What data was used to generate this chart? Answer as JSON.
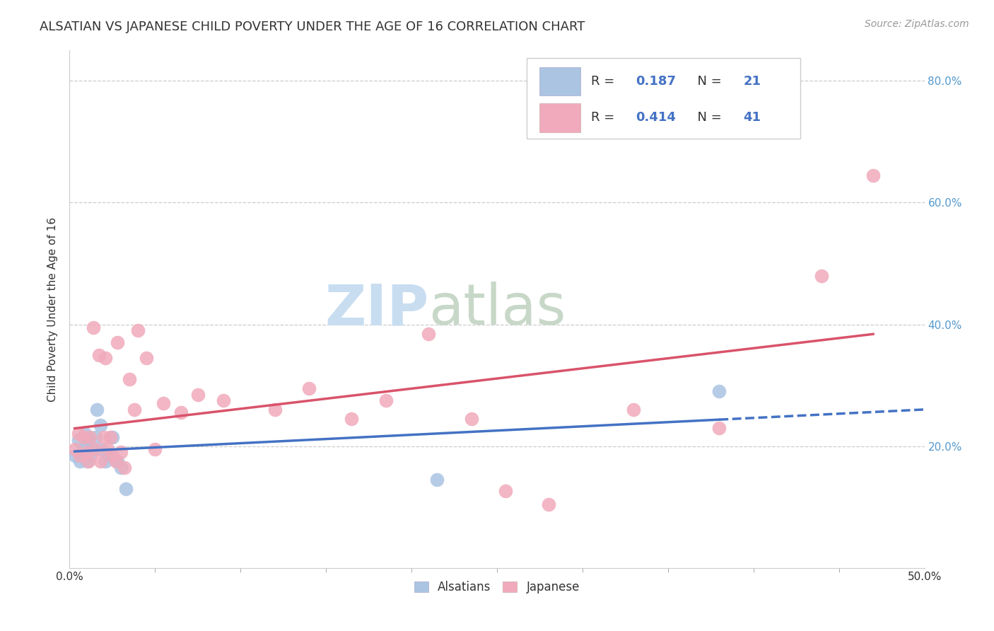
{
  "title": "ALSATIAN VS JAPANESE CHILD POVERTY UNDER THE AGE OF 16 CORRELATION CHART",
  "source": "Source: ZipAtlas.com",
  "ylabel": "Child Poverty Under the Age of 16",
  "xlim": [
    0.0,
    0.5
  ],
  "ylim": [
    0.0,
    0.85
  ],
  "xticks": [
    0.0,
    0.5
  ],
  "xticklabels": [
    "0.0%",
    "50.0%"
  ],
  "yticks": [
    0.2,
    0.4,
    0.6,
    0.8
  ],
  "yticklabels": [
    "20.0%",
    "40.0%",
    "60.0%",
    "80.0%"
  ],
  "grid_color": "#cccccc",
  "background_color": "#ffffff",
  "alsatian_color": "#aac4e2",
  "japanese_color": "#f0aabb",
  "alsatian_line_color": "#4472c4",
  "japanese_line_color": "#d9536a",
  "legend_R_alsatian": "0.187",
  "legend_N_alsatian": "21",
  "legend_R_japanese": "0.414",
  "legend_N_japanese": "41",
  "alsatian_x": [
    0.003,
    0.005,
    0.006,
    0.008,
    0.009,
    0.01,
    0.011,
    0.012,
    0.013,
    0.015,
    0.016,
    0.018,
    0.019,
    0.021,
    0.023,
    0.025,
    0.028,
    0.03,
    0.033,
    0.215,
    0.38
  ],
  "alsatian_y": [
    0.185,
    0.21,
    0.175,
    0.195,
    0.22,
    0.175,
    0.21,
    0.185,
    0.195,
    0.215,
    0.26,
    0.235,
    0.195,
    0.175,
    0.185,
    0.215,
    0.175,
    0.165,
    0.13,
    0.145,
    0.29
  ],
  "japanese_x": [
    0.003,
    0.005,
    0.006,
    0.008,
    0.01,
    0.011,
    0.012,
    0.014,
    0.015,
    0.017,
    0.018,
    0.02,
    0.021,
    0.022,
    0.024,
    0.025,
    0.027,
    0.028,
    0.03,
    0.032,
    0.035,
    0.038,
    0.04,
    0.045,
    0.05,
    0.055,
    0.065,
    0.075,
    0.09,
    0.12,
    0.14,
    0.165,
    0.185,
    0.21,
    0.235,
    0.255,
    0.28,
    0.33,
    0.38,
    0.44,
    0.47
  ],
  "japanese_y": [
    0.195,
    0.22,
    0.185,
    0.215,
    0.19,
    0.175,
    0.215,
    0.395,
    0.195,
    0.35,
    0.175,
    0.215,
    0.345,
    0.195,
    0.215,
    0.185,
    0.175,
    0.37,
    0.19,
    0.165,
    0.31,
    0.26,
    0.39,
    0.345,
    0.195,
    0.27,
    0.255,
    0.285,
    0.275,
    0.26,
    0.295,
    0.245,
    0.275,
    0.385,
    0.245,
    0.127,
    0.104,
    0.26,
    0.23,
    0.48,
    0.645
  ],
  "watermark_zip": "ZIP",
  "watermark_atlas": "atlas",
  "watermark_color_zip": "#c8ddf0",
  "watermark_color_atlas": "#c8d8c8",
  "title_fontsize": 13,
  "axis_label_fontsize": 11,
  "tick_fontsize": 11,
  "legend_fontsize": 13,
  "source_fontsize": 10
}
